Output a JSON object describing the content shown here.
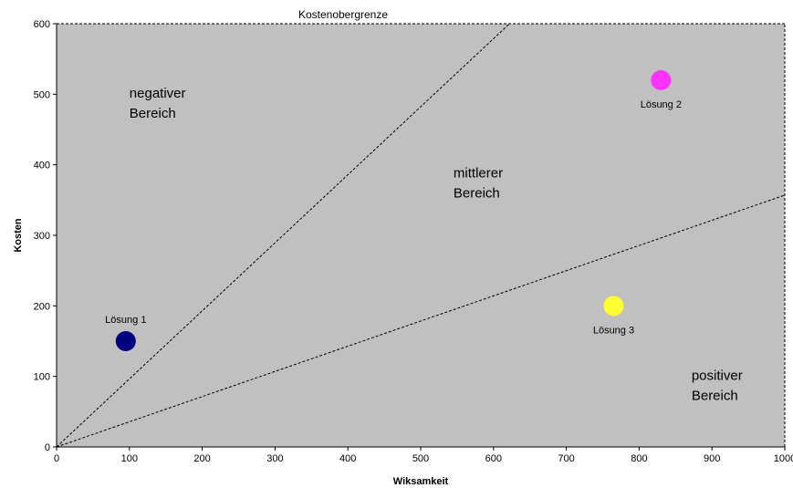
{
  "chart_data": {
    "type": "scatter",
    "xlabel": "Wiksamkeit",
    "ylabel": "Kosten",
    "xlim": [
      0,
      1000
    ],
    "ylim": [
      0,
      600
    ],
    "xticks": [
      0,
      100,
      200,
      300,
      400,
      500,
      600,
      700,
      800,
      900,
      1000
    ],
    "yticks": [
      0,
      100,
      200,
      300,
      400,
      500,
      600
    ],
    "grid": false,
    "background_color": "#c0c0c0",
    "points": [
      {
        "label": "Lösung 1",
        "x": 95,
        "y": 150,
        "color": "#000080"
      },
      {
        "label": "Lösung 2",
        "x": 830,
        "y": 520,
        "color": "#ff33ff"
      },
      {
        "label": "Lösung 3",
        "x": 765,
        "y": 200,
        "color": "#ffff33"
      }
    ],
    "lines": [
      {
        "from": [
          0,
          0
        ],
        "to": [
          622,
          600
        ],
        "style": "dashed"
      },
      {
        "from": [
          0,
          0
        ],
        "to": [
          1000,
          357
        ],
        "style": "dashed"
      },
      {
        "from": [
          0,
          600
        ],
        "to": [
          1000,
          600
        ],
        "style": "dashed",
        "label": "Kostenobergrenze"
      },
      {
        "from": [
          1000,
          0
        ],
        "to": [
          1000,
          600
        ],
        "style": "dashed"
      }
    ],
    "regions": [
      {
        "label": [
          "negativer",
          "Bereich"
        ],
        "x": 100,
        "y": 495
      },
      {
        "label": [
          "mittlerer",
          "Bereich"
        ],
        "x": 545,
        "y": 382
      },
      {
        "label": [
          "positiver",
          "Bereich"
        ],
        "x": 872,
        "y": 95
      }
    ]
  }
}
